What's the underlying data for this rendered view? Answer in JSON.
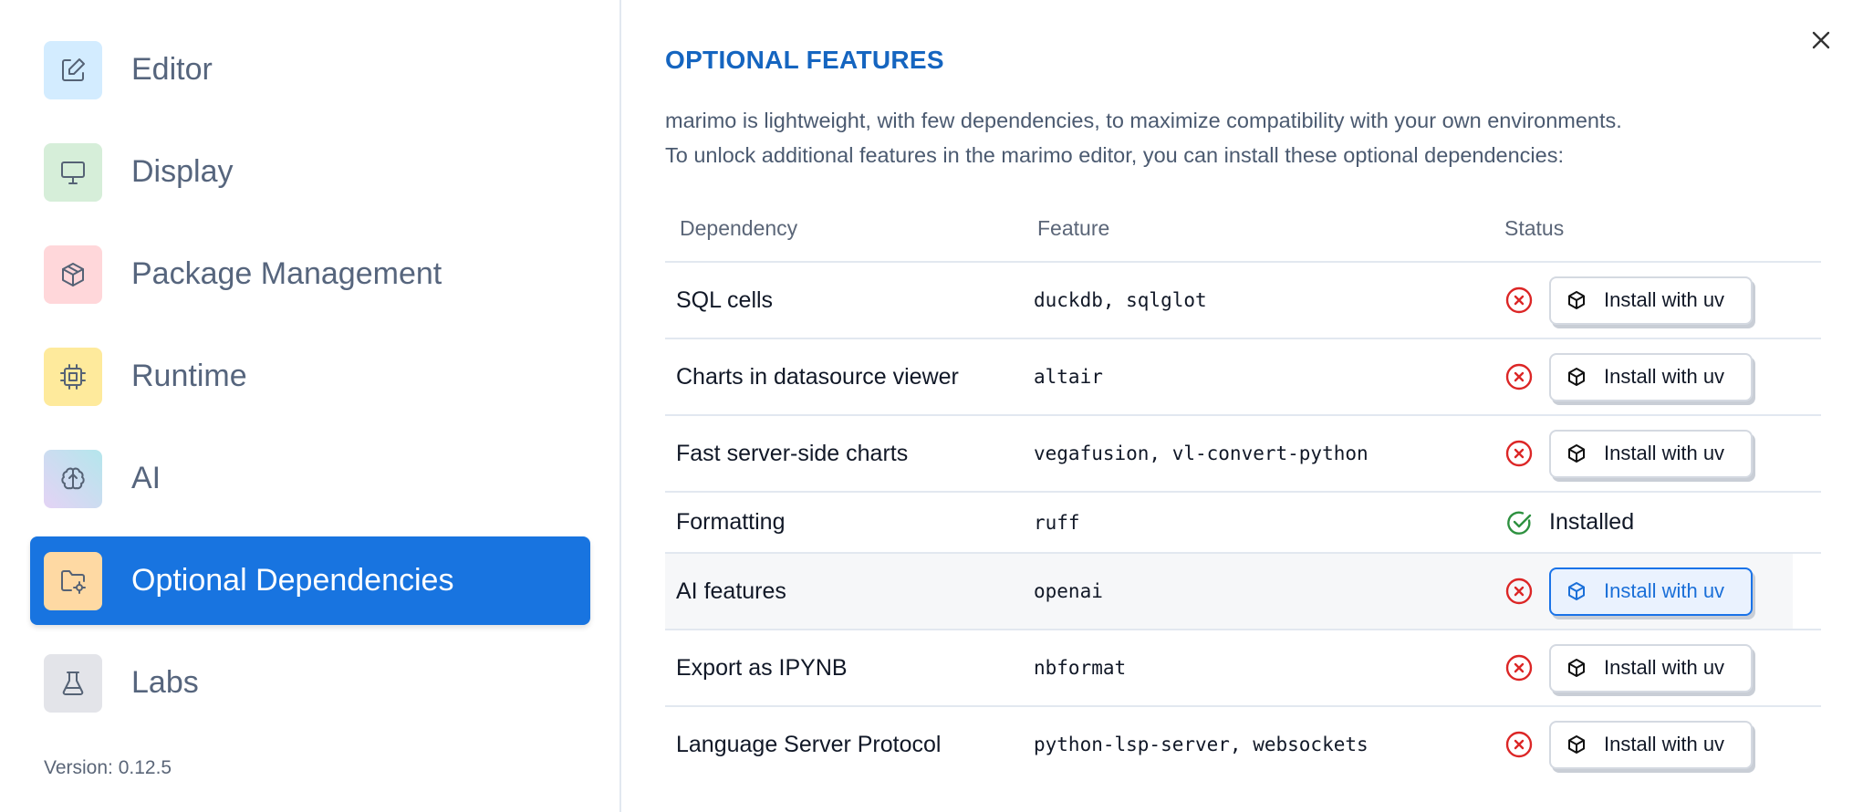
{
  "sidebar": {
    "items": [
      {
        "label": "Editor",
        "icon": "pencil-square-icon",
        "color": "#d3ecff"
      },
      {
        "label": "Display",
        "icon": "monitor-icon",
        "color": "#d6eed9"
      },
      {
        "label": "Package Management",
        "icon": "package-icon",
        "color": "#ffd7da"
      },
      {
        "label": "Runtime",
        "icon": "cpu-icon",
        "color": "#feea9c"
      },
      {
        "label": "AI",
        "icon": "brain-icon",
        "color": "#cfe0f4"
      },
      {
        "label": "Optional Dependencies",
        "icon": "folder-cog-icon",
        "color": "#fed9a3",
        "active": true
      },
      {
        "label": "Labs",
        "icon": "flask-icon",
        "color": "#e3e4e9"
      }
    ],
    "version": "Version: 0.12.5",
    "active_color": "#1874e0"
  },
  "main": {
    "title": "OPTIONAL FEATURES",
    "description_line1": "marimo is lightweight, with few dependencies, to maximize compatibility with your own environments.",
    "description_line2": "To unlock additional features in the marimo editor, you can install these optional dependencies:",
    "table": {
      "headers": [
        "Dependency",
        "Feature",
        "Status"
      ],
      "rows": [
        {
          "dependency": "SQL cells",
          "feature": "duckdb, sqlglot",
          "status": "missing",
          "action": "Install with uv"
        },
        {
          "dependency": "Charts in datasource viewer",
          "feature": "altair",
          "status": "missing",
          "action": "Install with uv"
        },
        {
          "dependency": "Fast server-side charts",
          "feature": "vegafusion, vl-convert-python",
          "status": "missing",
          "action": "Install with uv"
        },
        {
          "dependency": "Formatting",
          "feature": "ruff",
          "status": "installed",
          "action": "Installed"
        },
        {
          "dependency": "AI features",
          "feature": "openai",
          "status": "missing",
          "action": "Install with uv"
        },
        {
          "dependency": "Export as IPYNB",
          "feature": "nbformat",
          "status": "missing",
          "action": "Install with uv"
        },
        {
          "dependency": "Language Server Protocol",
          "feature": "python-lsp-server, websockets",
          "status": "missing",
          "action": "Install with uv"
        }
      ]
    },
    "colors": {
      "missing": "#dc2626",
      "installed": "#2e9140",
      "title": "#1565c0"
    }
  }
}
